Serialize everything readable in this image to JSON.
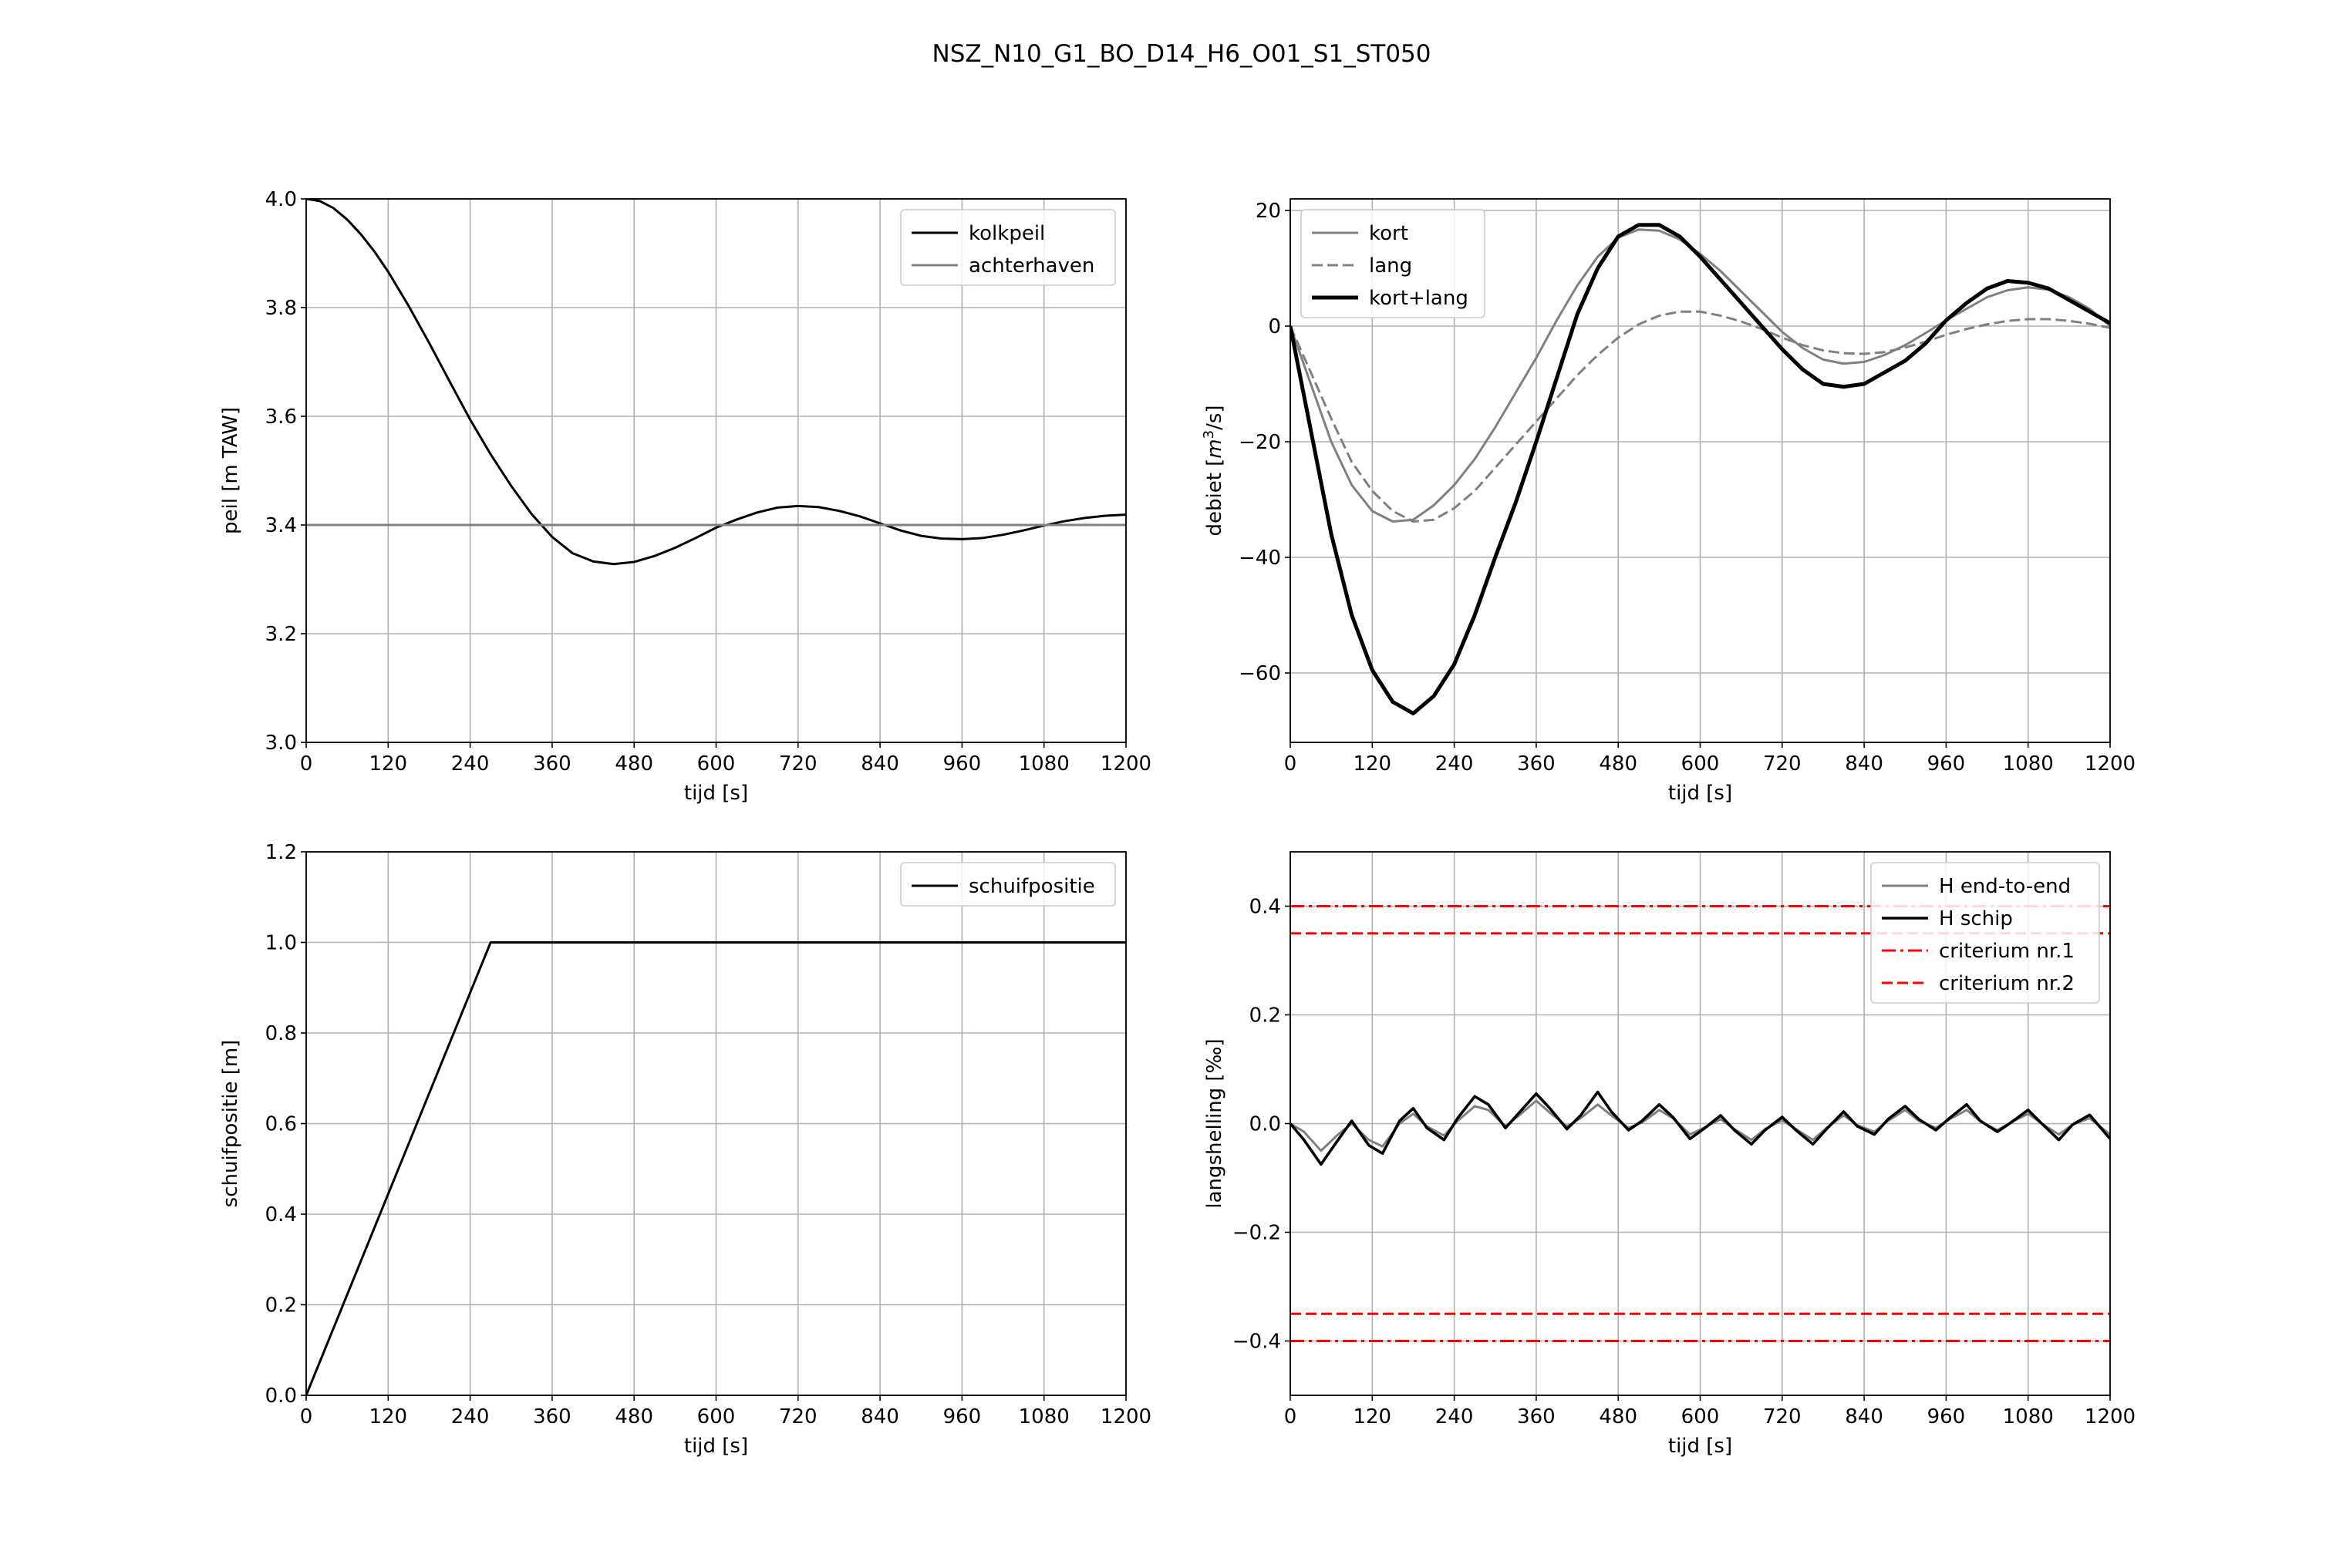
{
  "figure_title": "NSZ_N10_G1_BO_D14_H6_O01_S1_ST050",
  "chart_data": [
    {
      "type": "line",
      "xlabel": "tijd [s]",
      "ylabel": "peil [m TAW]",
      "xlim": [
        0,
        1200
      ],
      "ylim": [
        3.0,
        4.0
      ],
      "xticks": [
        0,
        120,
        240,
        360,
        480,
        600,
        720,
        840,
        960,
        1080,
        1200
      ],
      "yticks": [
        3.0,
        3.2,
        3.4,
        3.6,
        3.8,
        4.0
      ],
      "ytick_labels": [
        "3.0",
        "3.2",
        "3.4",
        "3.6",
        "3.8",
        "4.0"
      ],
      "grid": true,
      "legend_position": "top-right",
      "series": [
        {
          "name": "kolkpeil",
          "color": "#000000",
          "dash": "solid",
          "width": 1.5,
          "x": [
            0,
            20,
            40,
            60,
            80,
            100,
            120,
            150,
            180,
            210,
            240,
            270,
            300,
            330,
            360,
            390,
            420,
            450,
            480,
            510,
            540,
            570,
            600,
            630,
            660,
            690,
            720,
            750,
            780,
            810,
            840,
            870,
            900,
            930,
            960,
            990,
            1020,
            1050,
            1080,
            1110,
            1140,
            1170,
            1200
          ],
          "y": [
            4.0,
            3.996,
            3.983,
            3.962,
            3.935,
            3.903,
            3.866,
            3.803,
            3.735,
            3.664,
            3.594,
            3.53,
            3.472,
            3.42,
            3.378,
            3.348,
            3.333,
            3.328,
            3.332,
            3.343,
            3.358,
            3.376,
            3.395,
            3.41,
            3.423,
            3.432,
            3.435,
            3.433,
            3.426,
            3.416,
            3.403,
            3.39,
            3.38,
            3.375,
            3.374,
            3.376,
            3.382,
            3.39,
            3.399,
            3.407,
            3.413,
            3.417,
            3.419
          ]
        },
        {
          "name": "achterhaven",
          "color": "#808080",
          "dash": "solid",
          "width": 1.5,
          "x": [
            0,
            1200
          ],
          "y": [
            3.4,
            3.4
          ]
        }
      ]
    },
    {
      "type": "line",
      "xlabel": "tijd [s]",
      "ylabel": "debiet [m³/s]",
      "ylabel_parts": [
        "debiet [",
        "m",
        "3",
        "/s]"
      ],
      "xlim": [
        0,
        1200
      ],
      "ylim": [
        -72,
        22
      ],
      "xticks": [
        0,
        120,
        240,
        360,
        480,
        600,
        720,
        840,
        960,
        1080,
        1200
      ],
      "yticks": [
        -60,
        -40,
        -20,
        0,
        20
      ],
      "ytick_labels": [
        "−60",
        "−40",
        "−20",
        "0",
        "20"
      ],
      "grid": true,
      "legend_position": "top-left",
      "series": [
        {
          "name": "kort",
          "color": "#808080",
          "dash": "solid",
          "width": 1.5,
          "x": [
            0,
            30,
            60,
            90,
            120,
            150,
            180,
            210,
            240,
            270,
            300,
            330,
            360,
            390,
            420,
            450,
            480,
            510,
            540,
            570,
            600,
            630,
            660,
            690,
            720,
            750,
            780,
            810,
            840,
            870,
            900,
            930,
            960,
            990,
            1020,
            1050,
            1080,
            1110,
            1140,
            1170,
            1200
          ],
          "y": [
            0,
            -10,
            -20,
            -27.5,
            -32,
            -33.8,
            -33.5,
            -31,
            -27.5,
            -23,
            -17.5,
            -11.5,
            -5.5,
            1,
            7,
            12,
            15.3,
            16.7,
            16.5,
            15,
            12.5,
            9.5,
            6,
            2.5,
            -1,
            -3.8,
            -5.8,
            -6.5,
            -6.2,
            -5,
            -3.3,
            -1.2,
            1,
            3,
            5,
            6.2,
            6.7,
            6.3,
            5,
            3,
            0
          ]
        },
        {
          "name": "lang",
          "color": "#808080",
          "dash": "dashed",
          "width": 1.5,
          "x": [
            0,
            30,
            60,
            90,
            120,
            150,
            180,
            210,
            240,
            270,
            300,
            330,
            360,
            390,
            420,
            450,
            480,
            510,
            540,
            570,
            600,
            630,
            660,
            690,
            720,
            750,
            780,
            810,
            840,
            870,
            900,
            930,
            960,
            990,
            1020,
            1050,
            1080,
            1110,
            1140,
            1170,
            1200
          ],
          "y": [
            0,
            -8,
            -16,
            -23.5,
            -28.5,
            -32,
            -33.8,
            -33.5,
            -31.5,
            -28.5,
            -24.5,
            -20.5,
            -16.5,
            -12.5,
            -8.5,
            -5,
            -2,
            0.3,
            1.8,
            2.5,
            2.5,
            1.8,
            0.8,
            -0.5,
            -2,
            -3.3,
            -4.2,
            -4.7,
            -4.8,
            -4.5,
            -3.7,
            -2.7,
            -1.5,
            -0.5,
            0.3,
            0.9,
            1.2,
            1.2,
            0.9,
            0.4,
            -0.3
          ]
        },
        {
          "name": "kort+lang",
          "color": "#000000",
          "dash": "solid",
          "width": 2.5,
          "x": [
            0,
            30,
            60,
            90,
            120,
            150,
            180,
            210,
            240,
            270,
            300,
            330,
            360,
            390,
            420,
            450,
            480,
            510,
            540,
            570,
            600,
            630,
            660,
            690,
            720,
            750,
            780,
            810,
            840,
            870,
            900,
            930,
            960,
            990,
            1020,
            1050,
            1080,
            1110,
            1140,
            1170,
            1200
          ],
          "y": [
            0,
            -18,
            -36,
            -50,
            -59.5,
            -65,
            -67,
            -64,
            -58.5,
            -50,
            -40,
            -30.5,
            -20,
            -9,
            2,
            10,
            15.5,
            17.5,
            17.5,
            15.5,
            12,
            8,
            4,
            0,
            -4,
            -7.5,
            -10,
            -10.5,
            -10,
            -8,
            -6,
            -3,
            1,
            4,
            6.5,
            7.8,
            7.5,
            6.5,
            4.5,
            2.5,
            0.5
          ]
        }
      ]
    },
    {
      "type": "line",
      "xlabel": "tijd [s]",
      "ylabel": "schuifpositie [m]",
      "xlim": [
        0,
        1200
      ],
      "ylim": [
        0.0,
        1.2
      ],
      "xticks": [
        0,
        120,
        240,
        360,
        480,
        600,
        720,
        840,
        960,
        1080,
        1200
      ],
      "yticks": [
        0.0,
        0.2,
        0.4,
        0.6,
        0.8,
        1.0,
        1.2
      ],
      "ytick_labels": [
        "0.0",
        "0.2",
        "0.4",
        "0.6",
        "0.8",
        "1.0",
        "1.2"
      ],
      "grid": true,
      "legend_position": "top-right",
      "series": [
        {
          "name": "schuifpositie",
          "color": "#000000",
          "dash": "solid",
          "width": 1.5,
          "x": [
            0,
            270,
            1200
          ],
          "y": [
            0.0,
            1.0,
            1.0
          ]
        }
      ]
    },
    {
      "type": "line",
      "xlabel": "tijd [s]",
      "ylabel": "langshelling [‰]",
      "xlim": [
        0,
        1200
      ],
      "ylim": [
        -0.5,
        0.5
      ],
      "xticks": [
        0,
        120,
        240,
        360,
        480,
        600,
        720,
        840,
        960,
        1080,
        1200
      ],
      "yticks": [
        -0.4,
        -0.2,
        0.0,
        0.2,
        0.4
      ],
      "ytick_labels": [
        "−0.4",
        "−0.2",
        "0.0",
        "0.2",
        "0.4"
      ],
      "grid": true,
      "legend_position": "top-right",
      "series": [
        {
          "name": "H end-to-end",
          "color": "#808080",
          "dash": "solid",
          "width": 1.5,
          "x": [
            0,
            20,
            45,
            70,
            90,
            115,
            135,
            160,
            180,
            200,
            225,
            245,
            270,
            290,
            315,
            335,
            360,
            380,
            405,
            425,
            450,
            470,
            495,
            515,
            540,
            560,
            585,
            605,
            630,
            650,
            675,
            695,
            720,
            740,
            765,
            785,
            810,
            830,
            855,
            875,
            900,
            920,
            945,
            965,
            990,
            1010,
            1035,
            1055,
            1080,
            1100,
            1125,
            1145,
            1170,
            1200
          ],
          "y": [
            0,
            -0.015,
            -0.05,
            -0.02,
            0.0,
            -0.03,
            -0.042,
            0.0,
            0.018,
            -0.005,
            -0.022,
            0.005,
            0.032,
            0.025,
            -0.005,
            0.015,
            0.042,
            0.02,
            -0.005,
            0.01,
            0.035,
            0.015,
            -0.008,
            0.002,
            0.025,
            0.01,
            -0.02,
            -0.008,
            0.008,
            -0.01,
            -0.03,
            -0.01,
            0.006,
            -0.01,
            -0.03,
            -0.008,
            0.015,
            -0.003,
            -0.015,
            0.005,
            0.025,
            0.005,
            -0.008,
            0.008,
            0.025,
            0.004,
            -0.012,
            0.002,
            0.018,
            0.0,
            -0.02,
            -0.002,
            0.01,
            -0.02
          ]
        },
        {
          "name": "H schip",
          "color": "#000000",
          "dash": "solid",
          "width": 1.8,
          "x": [
            0,
            20,
            45,
            70,
            90,
            115,
            135,
            160,
            180,
            200,
            225,
            245,
            270,
            290,
            315,
            335,
            360,
            380,
            405,
            425,
            450,
            470,
            495,
            515,
            540,
            560,
            585,
            605,
            630,
            650,
            675,
            695,
            720,
            740,
            765,
            785,
            810,
            830,
            855,
            875,
            900,
            920,
            945,
            965,
            990,
            1010,
            1035,
            1055,
            1080,
            1100,
            1125,
            1145,
            1170,
            1200
          ],
          "y": [
            0,
            -0.03,
            -0.075,
            -0.03,
            0.005,
            -0.04,
            -0.055,
            0.005,
            0.028,
            -0.008,
            -0.03,
            0.01,
            0.05,
            0.035,
            -0.008,
            0.02,
            0.055,
            0.028,
            -0.01,
            0.015,
            0.058,
            0.022,
            -0.012,
            0.005,
            0.035,
            0.012,
            -0.028,
            -0.01,
            0.015,
            -0.012,
            -0.038,
            -0.012,
            0.012,
            -0.012,
            -0.038,
            -0.01,
            0.022,
            -0.005,
            -0.02,
            0.008,
            0.032,
            0.008,
            -0.012,
            0.01,
            0.035,
            0.005,
            -0.015,
            0.002,
            0.025,
            0.0,
            -0.03,
            -0.002,
            0.016,
            -0.028
          ]
        },
        {
          "name": "criterium nr.1",
          "color": "#ff0000",
          "dash": "dashdot",
          "width": 1.5,
          "x": [
            0,
            1200
          ],
          "y": [
            0.4,
            0.4
          ],
          "mirror_y": [
            -0.4,
            -0.4
          ]
        },
        {
          "name": "criterium nr.2",
          "color": "#ff0000",
          "dash": "dashed",
          "width": 1.5,
          "x": [
            0,
            1200
          ],
          "y": [
            0.35,
            0.35
          ],
          "mirror_y": [
            -0.35,
            -0.35
          ]
        }
      ]
    }
  ]
}
